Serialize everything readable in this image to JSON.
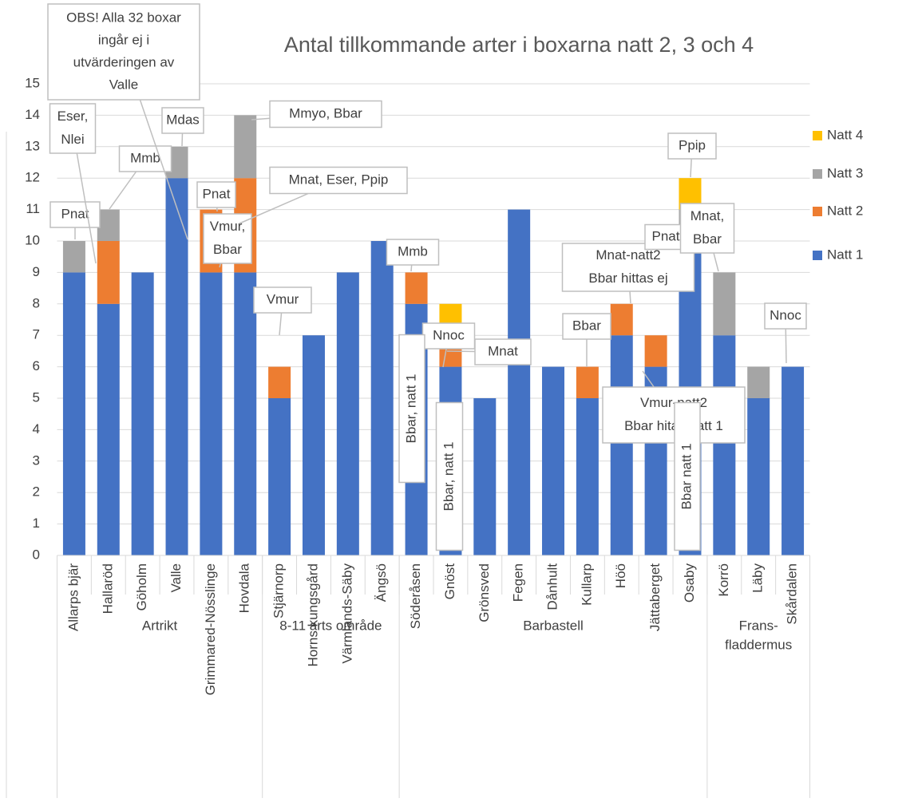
{
  "chart_data": {
    "type": "bar",
    "stacked": true,
    "title": "Antal tillkommande arter i boxarna natt 2, 3 och 4",
    "groups": [
      {
        "label": [
          "Artrikt"
        ],
        "categories": [
          "Allarps bjär",
          "Hallaröd",
          "Göholm",
          "Valle",
          "Grimmared-Nösslinge",
          "Hovdala"
        ]
      },
      {
        "label": [
          "8-11 arts område"
        ],
        "categories": [
          "Stjärnorp",
          "Horns kungsgård",
          "Värmlands-Säby",
          "Ängsö"
        ]
      },
      {
        "label": [
          "Barbastell"
        ],
        "categories": [
          "Söderåsen",
          "Gnöst",
          "Grönsved",
          "Fegen",
          "Dånhult",
          "Kullarp",
          "Höö",
          "Jättaberget",
          "Osaby"
        ]
      },
      {
        "label": [
          "Frans-",
          "fladdermus"
        ],
        "categories": [
          "Korrö",
          "Läby",
          "Skårdalen"
        ]
      }
    ],
    "series": [
      {
        "name": "Natt 1",
        "color": "#4472c4",
        "values": [
          9,
          8,
          9,
          12,
          9,
          9,
          5,
          7,
          9,
          10,
          8,
          6,
          5,
          11,
          6,
          5,
          7,
          6,
          10,
          7,
          5,
          6
        ]
      },
      {
        "name": "Natt 2",
        "color": "#ed7d31",
        "values": [
          0,
          2,
          0,
          0,
          2,
          3,
          1,
          0,
          0,
          0,
          1,
          1,
          0,
          0,
          0,
          1,
          1,
          1,
          0,
          0,
          0,
          0
        ]
      },
      {
        "name": "Natt 3",
        "color": "#a5a5a5",
        "values": [
          1,
          1,
          0,
          1,
          0,
          2,
          0,
          0,
          0,
          0,
          0,
          0,
          0,
          0,
          0,
          0,
          0,
          0,
          1,
          2,
          1,
          0
        ]
      },
      {
        "name": "Natt 4",
        "color": "#ffc000",
        "values": [
          0,
          0,
          0,
          0,
          0,
          0,
          0,
          0,
          0,
          0,
          0,
          1,
          0,
          0,
          0,
          0,
          0,
          0,
          1,
          0,
          0,
          0
        ]
      }
    ],
    "ylim": [
      0,
      15
    ],
    "yticks": [
      0,
      1,
      2,
      3,
      4,
      5,
      6,
      7,
      8,
      9,
      10,
      11,
      12,
      13,
      14,
      15
    ],
    "grid": true,
    "legend": "right",
    "annotations": [
      {
        "lines": [
          "Pnat"
        ]
      },
      {
        "lines": [
          "Eser,",
          "Nlei"
        ]
      },
      {
        "lines": [
          "Mmb"
        ]
      },
      {
        "lines": [
          "OBS! Alla 32 boxar",
          "ingår ej i",
          "utvärderingen av",
          "Valle"
        ]
      },
      {
        "lines": [
          "Mdas"
        ]
      },
      {
        "lines": [
          "Mmyo, Bbar"
        ]
      },
      {
        "lines": [
          "Pnat"
        ]
      },
      {
        "lines": [
          "Vmur,",
          "Bbar"
        ]
      },
      {
        "lines": [
          "Mnat, Eser, Ppip"
        ]
      },
      {
        "lines": [
          "Vmur"
        ]
      },
      {
        "lines": [
          "Mmb"
        ]
      },
      {
        "lines": [
          "Nnoc"
        ]
      },
      {
        "lines": [
          "Mnat"
        ]
      },
      {
        "lines": [
          "Bbar, natt 1"
        ]
      },
      {
        "lines": [
          "Bbar, natt 1"
        ]
      },
      {
        "lines": [
          "Bbar"
        ]
      },
      {
        "lines": [
          "Mnat-natt2",
          "Bbar hittas ej"
        ]
      },
      {
        "lines": [
          "Pnat"
        ]
      },
      {
        "lines": [
          "Ppip"
        ]
      },
      {
        "lines": [
          "Vmur-natt2",
          "Bbar hitas natt 1"
        ]
      },
      {
        "lines": [
          "Bbar natt 1"
        ]
      },
      {
        "lines": [
          "Mnat,",
          "Bbar"
        ]
      },
      {
        "lines": [
          "Nnoc"
        ]
      }
    ]
  }
}
